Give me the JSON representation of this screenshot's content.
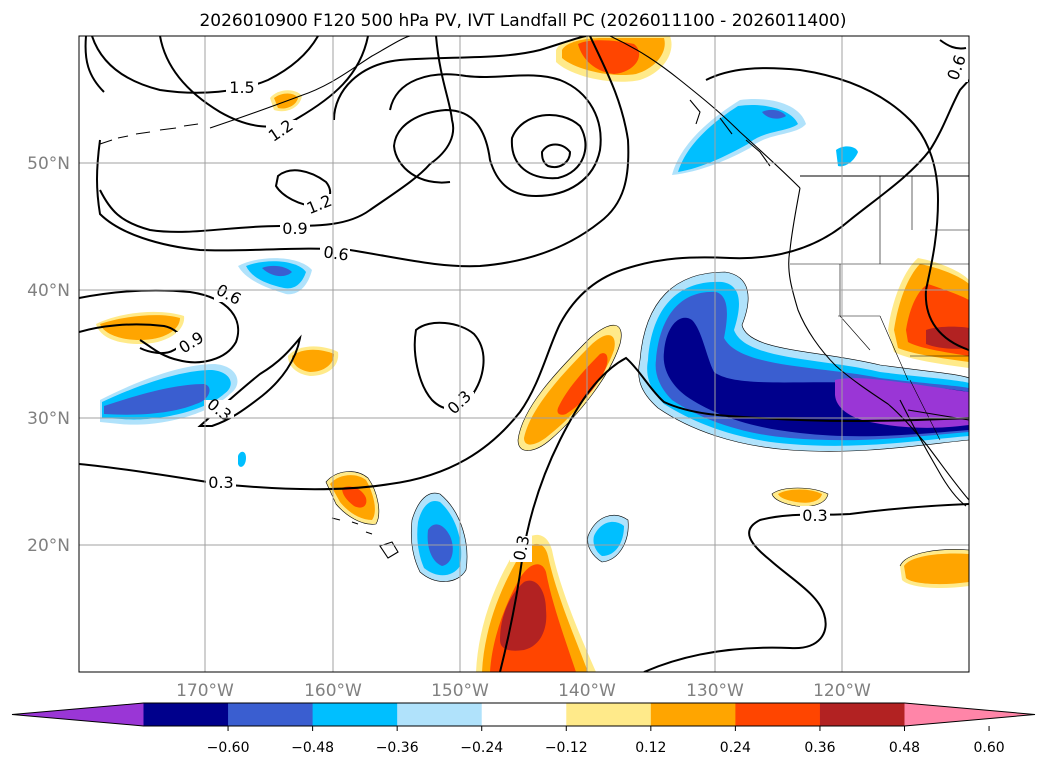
{
  "map": {
    "title": "2026010900 F120 500 hPa PV, IVT Landfall PC (2026011100 - 2026011400)",
    "lat_labels": [
      "50°N",
      "40°N",
      "30°N",
      "20°N"
    ],
    "lon_labels": [
      "170°W",
      "160°W",
      "150°W",
      "140°W",
      "130°W",
      "120°W"
    ],
    "contour_labels": [
      "1.5",
      "1.2",
      "1.2",
      "0.9",
      "0.6",
      "0.6",
      "0.9",
      "0.3",
      "0.3",
      "0.3",
      "0.3",
      "0.3",
      "0.6"
    ]
  },
  "colorbar": {
    "colors": [
      "#9a36d6",
      "#00008c",
      "#3a5ed0",
      "#00bfff",
      "#b0e2fb",
      "#ffffff",
      "#ffea8a",
      "#ffa500",
      "#ff4500",
      "#b22222",
      "#ff85a8"
    ],
    "ticks": [
      "−0.60",
      "−0.48",
      "−0.36",
      "−0.24",
      "−0.12",
      "0.12",
      "0.24",
      "0.36",
      "0.48",
      "0.60"
    ]
  },
  "palette": {
    "purple": "#9a36d6",
    "navy": "#00008c",
    "royal": "#3a5ed0",
    "sky": "#00bfff",
    "pale_blue": "#b0e2fb",
    "yellow": "#ffea8a",
    "orange": "#ffa500",
    "red_orange": "#ff4500",
    "firebrick": "#b22222",
    "pink": "#ff85a8"
  }
}
